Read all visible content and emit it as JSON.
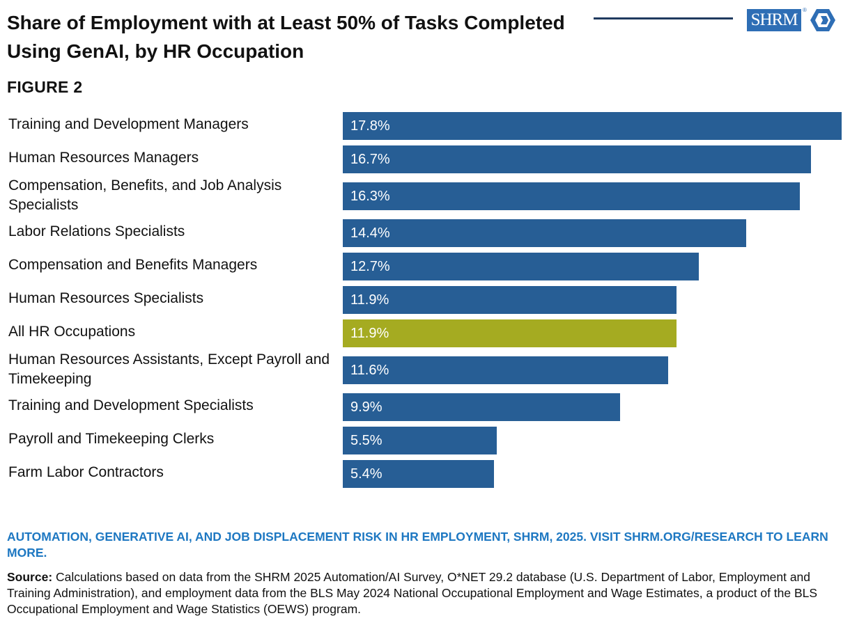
{
  "header": {
    "title": "Share of Employment with at Least 50% of Tasks Completed Using GenAI, by HR Occupation",
    "figure_label": "FIGURE 2",
    "logo_text": "SHRM",
    "logo_reg": "®"
  },
  "colors": {
    "bar": "#275e95",
    "highlight": "#a5ab21",
    "rule": "#1f3a5f",
    "cta": "#1e78c2"
  },
  "chart_data": {
    "type": "bar",
    "orientation": "horizontal",
    "xlim": [
      0,
      17.8
    ],
    "categories": [
      "Training and Development Managers",
      "Human Resources Managers",
      "Compensation, Benefits, and Job Analysis Specialists",
      "Labor Relations Specialists",
      "Compensation and Benefits Managers",
      "Human Resources Specialists",
      "All HR Occupations",
      "Human Resources Assistants, Except Payroll and Timekeeping",
      "Training and Development Specialists",
      "Payroll and Timekeeping Clerks",
      "Farm Labor Contractors"
    ],
    "values": [
      17.8,
      16.7,
      16.3,
      14.4,
      12.7,
      11.9,
      11.9,
      11.6,
      9.9,
      5.5,
      5.4
    ],
    "value_labels": [
      "17.8%",
      "16.7%",
      "16.3%",
      "14.4%",
      "12.7%",
      "11.9%",
      "11.9%",
      "11.6%",
      "9.9%",
      "5.5%",
      "5.4%"
    ],
    "highlight_category": "All HR Occupations",
    "grid": false,
    "legend": "none"
  },
  "footer": {
    "cta": "AUTOMATION, GENERATIVE AI, AND JOB DISPLACEMENT RISK IN HR EMPLOYMENT, SHRM, 2025. VISIT SHRM.ORG/RESEARCH TO LEARN MORE.",
    "source_label": "Source:",
    "source_text": "Calculations based on data from the SHRM 2025 Automation/AI Survey, O*NET 29.2 database (U.S. Department of Labor, Employment and Training Administration), and employment data from the BLS May 2024 National Occupational Employment and Wage Estimates, a product of the BLS Occupational Employment and Wage Statistics (OEWS) program."
  }
}
